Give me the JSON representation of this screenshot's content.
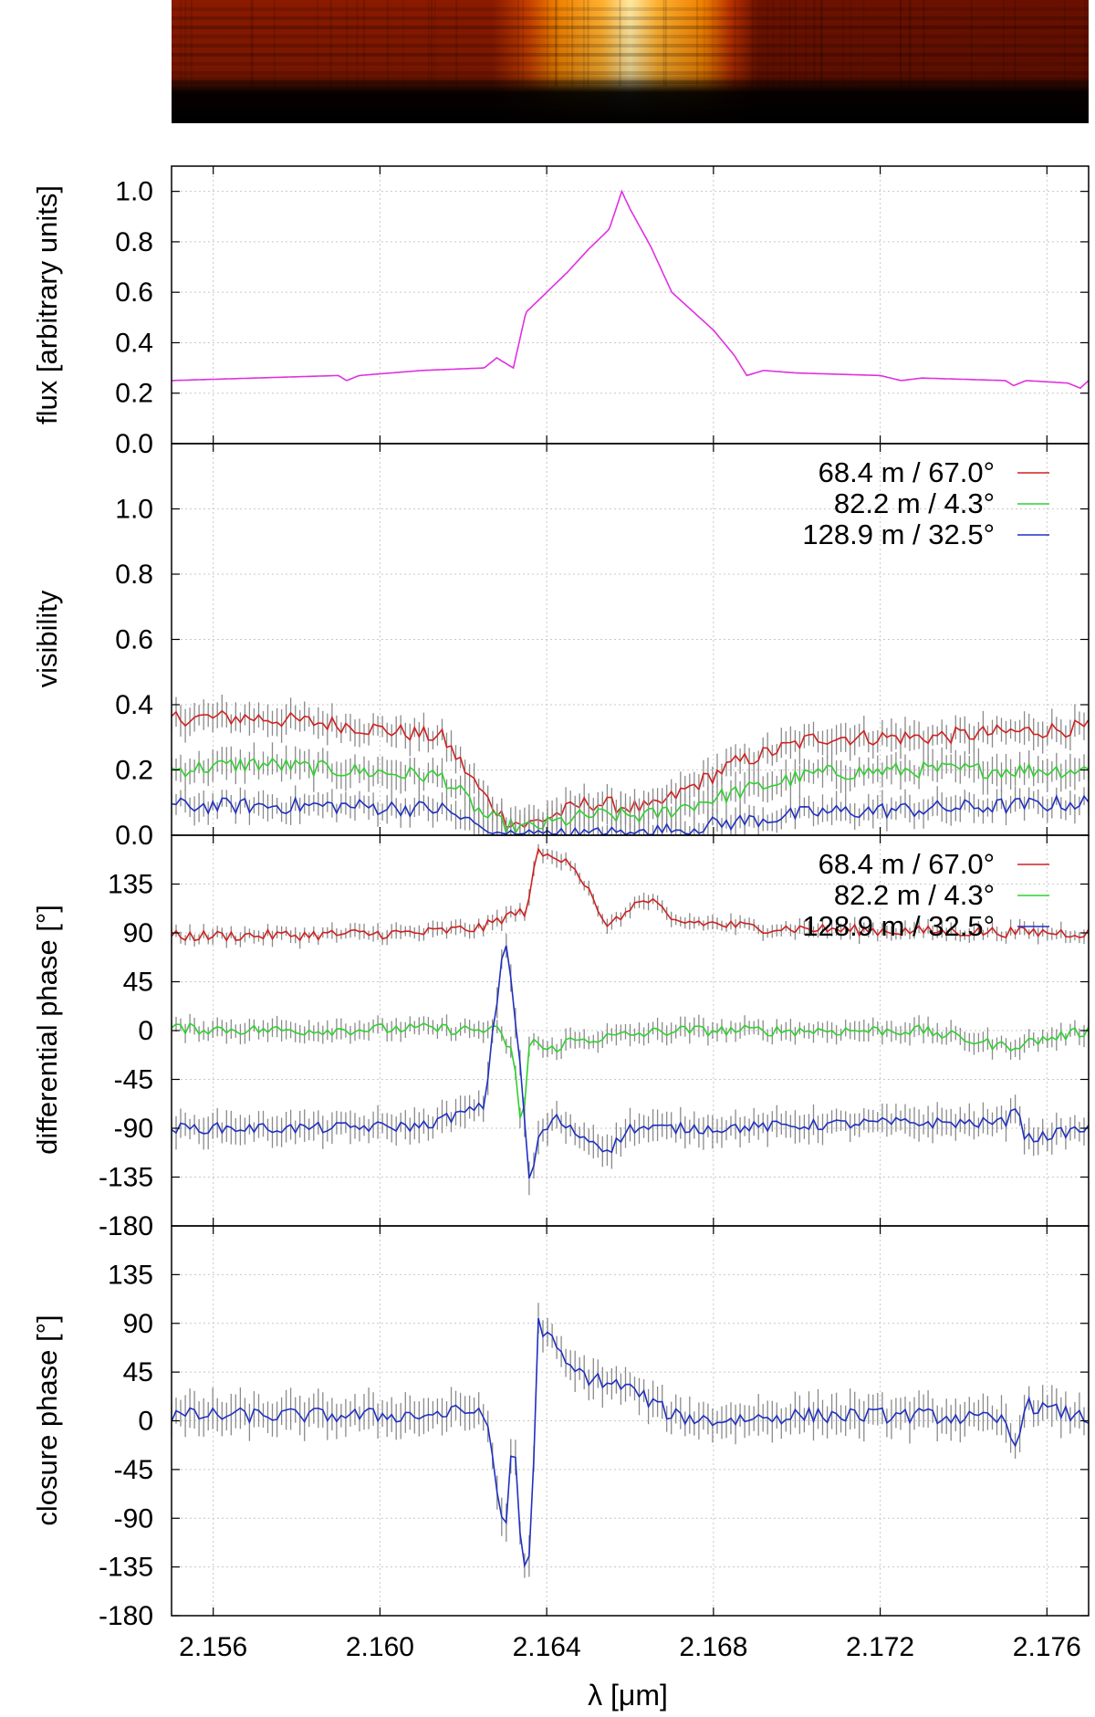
{
  "chart_data": [
    {
      "type": "heatmap",
      "title": "",
      "description_note": "",
      "xlim": [
        2.155,
        2.177
      ],
      "colormap": [
        "#000000",
        "#5a0000",
        "#a01000",
        "#d84000",
        "#ff9000",
        "#ffe070",
        "#ffffff"
      ]
    },
    {
      "type": "line",
      "ylabel": "flux [arbitrary units]",
      "xlim": [
        2.155,
        2.177
      ],
      "ylim": [
        0.0,
        1.1
      ],
      "yticks": [
        "0.0",
        "0.2",
        "0.4",
        "0.6",
        "0.8",
        "1.0"
      ],
      "series": [
        {
          "color": "#e030e0",
          "x": [
            2.155,
            2.157,
            2.159,
            2.1592,
            2.1595,
            2.161,
            2.1625,
            2.1628,
            2.1632,
            2.1635,
            2.164,
            2.1645,
            2.165,
            2.1655,
            2.1658,
            2.166,
            2.1665,
            2.167,
            2.168,
            2.1685,
            2.1688,
            2.1692,
            2.17,
            2.172,
            2.1725,
            2.173,
            2.175,
            2.1752,
            2.1755,
            2.1765,
            2.1768,
            2.177
          ],
          "y": [
            0.25,
            0.26,
            0.27,
            0.25,
            0.27,
            0.29,
            0.3,
            0.34,
            0.3,
            0.52,
            0.6,
            0.68,
            0.77,
            0.85,
            1.0,
            0.93,
            0.78,
            0.6,
            0.45,
            0.35,
            0.27,
            0.29,
            0.28,
            0.27,
            0.25,
            0.26,
            0.25,
            0.23,
            0.25,
            0.24,
            0.22,
            0.25
          ]
        }
      ]
    },
    {
      "type": "line",
      "ylabel": "visibility",
      "xlim": [
        2.155,
        2.177
      ],
      "ylim": [
        0.0,
        1.2
      ],
      "yticks": [
        "0.0",
        "0.2",
        "0.4",
        "0.6",
        "0.8",
        "1.0"
      ],
      "legend_position": "top-right",
      "series": [
        {
          "name": "68.4 m / 67.0°",
          "color": "#d02020",
          "x": [
            2.155,
            2.157,
            2.159,
            2.1615,
            2.1625,
            2.163,
            2.1635,
            2.165,
            2.1665,
            2.1685,
            2.1705,
            2.173,
            2.177
          ],
          "y": [
            0.36,
            0.36,
            0.34,
            0.3,
            0.12,
            0.05,
            0.03,
            0.1,
            0.08,
            0.22,
            0.3,
            0.3,
            0.33
          ],
          "error": 0.04
        },
        {
          "name": "82.2 m / 4.3°",
          "color": "#30d030",
          "x": [
            2.155,
            2.157,
            2.159,
            2.1615,
            2.1625,
            2.163,
            2.1635,
            2.165,
            2.1665,
            2.1685,
            2.1705,
            2.173,
            2.177
          ],
          "y": [
            0.2,
            0.22,
            0.2,
            0.18,
            0.06,
            0.03,
            0.02,
            0.06,
            0.06,
            0.13,
            0.19,
            0.2,
            0.2
          ],
          "error": 0.04
        },
        {
          "name": "128.9 m / 32.5°",
          "color": "#2030c0",
          "x": [
            2.155,
            2.157,
            2.159,
            2.1615,
            2.1625,
            2.163,
            2.1635,
            2.165,
            2.1665,
            2.1685,
            2.1705,
            2.173,
            2.177
          ],
          "y": [
            0.09,
            0.09,
            0.09,
            0.08,
            0.02,
            0.0,
            0.0,
            0.0,
            0.01,
            0.04,
            0.07,
            0.08,
            0.1
          ],
          "error": 0.035
        }
      ]
    },
    {
      "type": "line",
      "ylabel": "differential phase [°]",
      "xlim": [
        2.155,
        2.177
      ],
      "ylim": [
        -180,
        180
      ],
      "yticks": [
        "-180",
        "-135",
        "-90",
        "-45",
        "0",
        "45",
        "90",
        "135"
      ],
      "legend_position": "top-right",
      "series": [
        {
          "name": "68.4 m / 67.0°",
          "color": "#d02020",
          "x": [
            2.155,
            2.158,
            2.161,
            2.1625,
            2.163,
            2.1635,
            2.1638,
            2.164,
            2.1645,
            2.165,
            2.1653,
            2.1657,
            2.166,
            2.1665,
            2.167,
            2.1675,
            2.169,
            2.172,
            2.177
          ],
          "y": [
            87,
            88,
            90,
            95,
            105,
            110,
            165,
            160,
            160,
            130,
            100,
            100,
            115,
            120,
            100,
            100,
            95,
            92,
            90
          ],
          "error": 6
        },
        {
          "name": "82.2 m / 4.3°",
          "color": "#30d030",
          "x": [
            2.155,
            2.158,
            2.161,
            2.1628,
            2.1632,
            2.1634,
            2.1636,
            2.164,
            2.1645,
            2.167,
            2.171,
            2.173,
            2.175,
            2.177
          ],
          "y": [
            2,
            0,
            2,
            0,
            -20,
            -100,
            -5,
            -20,
            -10,
            0,
            0,
            0,
            -15,
            0
          ],
          "error": 8
        },
        {
          "name": "128.9 m / 32.5°",
          "color": "#2030c0",
          "x": [
            2.155,
            2.158,
            2.161,
            2.1625,
            2.163,
            2.1632,
            2.1634,
            2.1636,
            2.1638,
            2.1642,
            2.1645,
            2.165,
            2.1655,
            2.166,
            2.168,
            2.172,
            2.175,
            2.1752,
            2.1755,
            2.177
          ],
          "y": [
            -90,
            -90,
            -88,
            -70,
            90,
            30,
            -50,
            -145,
            -100,
            -80,
            -90,
            -100,
            -110,
            -90,
            -90,
            -85,
            -85,
            -65,
            -100,
            -90
          ],
          "error": 12
        }
      ]
    },
    {
      "type": "line",
      "ylabel": "closure phase [°]",
      "xlabel": "λ [μm]",
      "xlim": [
        2.155,
        2.177
      ],
      "ylim": [
        -180,
        180
      ],
      "xticks": [
        2.156,
        2.16,
        2.164,
        2.168,
        2.172,
        2.176
      ],
      "xtick_labels": [
        "2.156",
        "2.160",
        "2.164",
        "2.168",
        "2.172",
        "2.176"
      ],
      "yticks": [
        "-180",
        "-135",
        "-90",
        "-45",
        "0",
        "45",
        "90",
        "135"
      ],
      "series": [
        {
          "color": "#2030c0",
          "x": [
            2.155,
            2.158,
            2.161,
            2.1625,
            2.163,
            2.1632,
            2.1634,
            2.1636,
            2.1638,
            2.164,
            2.1645,
            2.165,
            2.166,
            2.167,
            2.168,
            2.17,
            2.173,
            2.175,
            2.1752,
            2.1755,
            2.177
          ],
          "y": [
            5,
            5,
            5,
            10,
            -110,
            0,
            -130,
            -130,
            90,
            80,
            50,
            40,
            30,
            5,
            0,
            5,
            5,
            0,
            -25,
            15,
            2
          ],
          "error": 15
        }
      ]
    }
  ]
}
